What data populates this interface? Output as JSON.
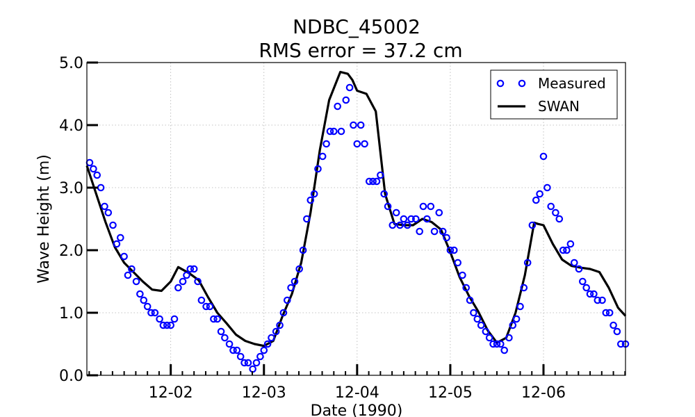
{
  "chart_data": {
    "type": "line",
    "title": "NDBC_45002",
    "subtitle": "RMS error = 37.2 cm",
    "xlabel": "Date (1990)",
    "ylabel": "Wave Height (m)",
    "x_unit": "days in December 1990",
    "xlim": [
      1.1,
      6.88
    ],
    "ylim": [
      0.0,
      5.0
    ],
    "yticks": [
      "0.0",
      "1.0",
      "2.0",
      "3.0",
      "4.0",
      "5.0"
    ],
    "ytick_values": [
      0,
      1,
      2,
      3,
      4,
      5
    ],
    "xticks": [
      "12-02",
      "12-03",
      "12-04",
      "12-05",
      "12-06"
    ],
    "xtick_values": [
      2,
      3,
      4,
      5,
      6
    ],
    "grid": true,
    "legend_position": "top-right",
    "colors": {
      "measured": "#0000ff",
      "swan": "#000000"
    },
    "series": [
      {
        "name": "Measured",
        "style": "open-circle",
        "x": [
          1.13,
          1.17,
          1.21,
          1.25,
          1.29,
          1.33,
          1.38,
          1.42,
          1.46,
          1.5,
          1.54,
          1.58,
          1.63,
          1.67,
          1.71,
          1.75,
          1.79,
          1.83,
          1.88,
          1.92,
          1.96,
          2.0,
          2.04,
          2.08,
          2.13,
          2.17,
          2.21,
          2.25,
          2.29,
          2.33,
          2.38,
          2.42,
          2.46,
          2.5,
          2.54,
          2.58,
          2.63,
          2.67,
          2.71,
          2.75,
          2.79,
          2.83,
          2.88,
          2.92,
          2.96,
          3.0,
          3.04,
          3.08,
          3.13,
          3.17,
          3.21,
          3.25,
          3.29,
          3.33,
          3.38,
          3.42,
          3.46,
          3.5,
          3.54,
          3.58,
          3.63,
          3.67,
          3.71,
          3.75,
          3.79,
          3.83,
          3.88,
          3.92,
          3.96,
          4.0,
          4.04,
          4.08,
          4.13,
          4.17,
          4.21,
          4.25,
          4.29,
          4.33,
          4.38,
          4.42,
          4.46,
          4.5,
          4.54,
          4.58,
          4.63,
          4.67,
          4.71,
          4.75,
          4.79,
          4.83,
          4.88,
          4.92,
          4.96,
          5.0,
          5.04,
          5.08,
          5.13,
          5.17,
          5.21,
          5.25,
          5.29,
          5.33,
          5.38,
          5.42,
          5.46,
          5.5,
          5.54,
          5.58,
          5.63,
          5.67,
          5.71,
          5.75,
          5.79,
          5.83,
          5.88,
          5.92,
          5.96,
          6.0,
          6.04,
          6.08,
          6.13,
          6.17,
          6.21,
          6.25,
          6.29,
          6.33,
          6.38,
          6.42,
          6.46,
          6.5,
          6.54,
          6.58,
          6.63,
          6.67,
          6.71,
          6.75,
          6.79,
          6.83,
          6.88
        ],
        "y": [
          3.4,
          3.3,
          3.2,
          3.0,
          2.7,
          2.6,
          2.4,
          2.1,
          2.2,
          1.9,
          1.6,
          1.7,
          1.5,
          1.3,
          1.2,
          1.1,
          1.0,
          1.0,
          0.9,
          0.8,
          0.8,
          0.8,
          0.9,
          1.4,
          1.5,
          1.6,
          1.7,
          1.7,
          1.5,
          1.2,
          1.1,
          1.1,
          0.9,
          0.9,
          0.7,
          0.6,
          0.5,
          0.4,
          0.4,
          0.3,
          0.2,
          0.2,
          0.1,
          0.2,
          0.3,
          0.4,
          0.5,
          0.6,
          0.7,
          0.8,
          1.0,
          1.2,
          1.4,
          1.5,
          1.7,
          2.0,
          2.5,
          2.8,
          2.9,
          3.3,
          3.5,
          3.7,
          3.9,
          3.9,
          4.3,
          3.9,
          4.4,
          4.6,
          4.0,
          3.7,
          4.0,
          3.7,
          3.1,
          3.1,
          3.1,
          3.2,
          2.9,
          2.7,
          2.4,
          2.6,
          2.4,
          2.5,
          2.4,
          2.5,
          2.5,
          2.3,
          2.7,
          2.5,
          2.7,
          2.3,
          2.6,
          2.3,
          2.2,
          2.0,
          2.0,
          1.8,
          1.6,
          1.4,
          1.2,
          1.0,
          0.9,
          0.8,
          0.7,
          0.6,
          0.5,
          0.5,
          0.5,
          0.4,
          0.6,
          0.8,
          0.9,
          1.1,
          1.4,
          1.8,
          2.4,
          2.8,
          2.9,
          3.5,
          3.0,
          2.7,
          2.6,
          2.5,
          2.0,
          2.0,
          2.1,
          1.8,
          1.7,
          1.5,
          1.4,
          1.3,
          1.3,
          1.2,
          1.2,
          1.0,
          1.0,
          0.8,
          0.7,
          0.5,
          0.5
        ]
      },
      {
        "name": "SWAN",
        "style": "line",
        "x": [
          1.1,
          1.2,
          1.3,
          1.4,
          1.5,
          1.6,
          1.7,
          1.8,
          1.9,
          2.0,
          2.08,
          2.2,
          2.3,
          2.4,
          2.5,
          2.6,
          2.7,
          2.8,
          2.9,
          3.0,
          3.1,
          3.2,
          3.3,
          3.4,
          3.5,
          3.6,
          3.7,
          3.82,
          3.9,
          3.95,
          4.0,
          4.1,
          4.2,
          4.3,
          4.4,
          4.5,
          4.6,
          4.7,
          4.8,
          4.9,
          5.0,
          5.1,
          5.2,
          5.3,
          5.4,
          5.5,
          5.6,
          5.7,
          5.8,
          5.9,
          5.94,
          6.0,
          6.1,
          6.2,
          6.3,
          6.4,
          6.5,
          6.6,
          6.7,
          6.8,
          6.88
        ],
        "y": [
          3.35,
          2.9,
          2.45,
          2.05,
          1.8,
          1.65,
          1.5,
          1.37,
          1.35,
          1.5,
          1.73,
          1.63,
          1.52,
          1.25,
          1.0,
          0.83,
          0.65,
          0.55,
          0.5,
          0.47,
          0.55,
          0.95,
          1.3,
          1.8,
          2.6,
          3.6,
          4.4,
          4.85,
          4.82,
          4.72,
          4.55,
          4.5,
          4.22,
          2.9,
          2.42,
          2.4,
          2.4,
          2.5,
          2.45,
          2.33,
          1.97,
          1.57,
          1.27,
          1.02,
          0.72,
          0.52,
          0.6,
          1.0,
          1.6,
          2.44,
          2.42,
          2.4,
          2.1,
          1.85,
          1.75,
          1.72,
          1.7,
          1.65,
          1.4,
          1.08,
          0.95
        ]
      }
    ]
  }
}
